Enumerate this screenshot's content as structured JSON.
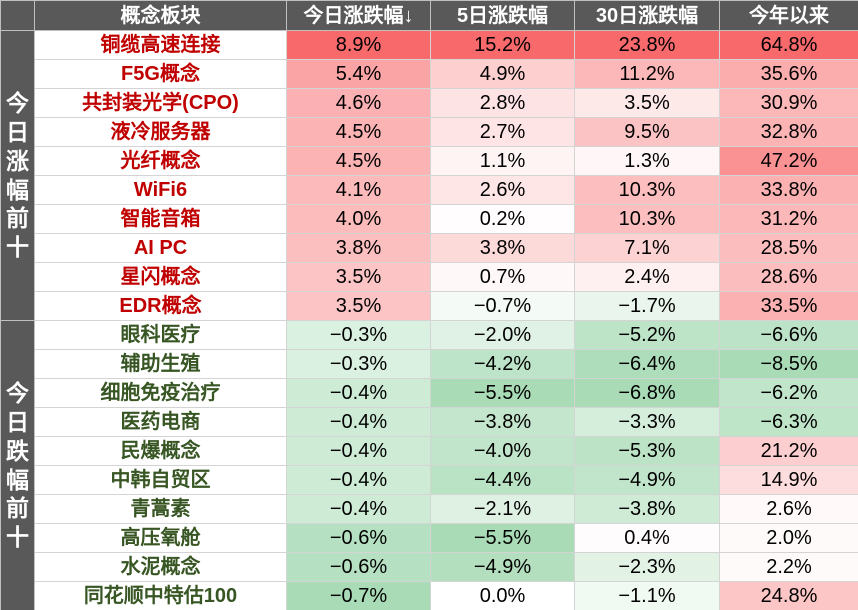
{
  "header": {
    "name": "概念板块",
    "today": "今日涨跌幅↓",
    "d5": "5日涨跌幅",
    "d30": "30日涨跌幅",
    "ytd": "今年以来"
  },
  "groups": [
    {
      "label": "今日涨幅前十",
      "direction": "up",
      "rows": [
        {
          "name": "铜缆高速连接",
          "today": "8.9%",
          "d5": "15.2%",
          "d30": "23.8%",
          "ytd": "64.8%"
        },
        {
          "name": "F5G概念",
          "today": "5.4%",
          "d5": "4.9%",
          "d30": "11.2%",
          "ytd": "35.6%"
        },
        {
          "name": "共封装光学(CPO)",
          "today": "4.6%",
          "d5": "2.8%",
          "d30": "3.5%",
          "ytd": "30.9%"
        },
        {
          "name": "液冷服务器",
          "today": "4.5%",
          "d5": "2.7%",
          "d30": "9.5%",
          "ytd": "32.8%"
        },
        {
          "name": "光纤概念",
          "today": "4.5%",
          "d5": "1.1%",
          "d30": "1.3%",
          "ytd": "47.2%"
        },
        {
          "name": "WiFi6",
          "today": "4.1%",
          "d5": "2.6%",
          "d30": "10.3%",
          "ytd": "33.8%"
        },
        {
          "name": "智能音箱",
          "today": "4.0%",
          "d5": "0.2%",
          "d30": "10.3%",
          "ytd": "31.2%"
        },
        {
          "name": "AI PC",
          "today": "3.8%",
          "d5": "3.8%",
          "d30": "7.1%",
          "ytd": "28.5%"
        },
        {
          "name": "星闪概念",
          "today": "3.5%",
          "d5": "0.7%",
          "d30": "2.4%",
          "ytd": "28.6%"
        },
        {
          "name": "EDR概念",
          "today": "3.5%",
          "d5": "−0.7%",
          "d30": "−1.7%",
          "ytd": "33.5%"
        }
      ]
    },
    {
      "label": "今日跌幅前十",
      "direction": "down",
      "rows": [
        {
          "name": "眼科医疗",
          "today": "−0.3%",
          "d5": "−2.0%",
          "d30": "−5.2%",
          "ytd": "−6.6%"
        },
        {
          "name": "辅助生殖",
          "today": "−0.3%",
          "d5": "−4.2%",
          "d30": "−6.4%",
          "ytd": "−8.5%"
        },
        {
          "name": "细胞免疫治疗",
          "today": "−0.4%",
          "d5": "−5.5%",
          "d30": "−6.8%",
          "ytd": "−6.2%"
        },
        {
          "name": "医药电商",
          "today": "−0.4%",
          "d5": "−3.8%",
          "d30": "−3.3%",
          "ytd": "−6.3%"
        },
        {
          "name": "民爆概念",
          "today": "−0.4%",
          "d5": "−4.0%",
          "d30": "−5.3%",
          "ytd": "21.2%"
        },
        {
          "name": "中韩自贸区",
          "today": "−0.4%",
          "d5": "−4.4%",
          "d30": "−4.9%",
          "ytd": "14.9%"
        },
        {
          "name": "青蒿素",
          "today": "−0.4%",
          "d5": "−2.1%",
          "d30": "−3.8%",
          "ytd": "2.6%"
        },
        {
          "name": "高压氧舱",
          "today": "−0.6%",
          "d5": "−5.5%",
          "d30": "0.4%",
          "ytd": "2.0%"
        },
        {
          "name": "水泥概念",
          "today": "−0.6%",
          "d5": "−4.9%",
          "d30": "−2.3%",
          "ytd": "2.2%"
        },
        {
          "name": "同花顺中特估100",
          "today": "−0.7%",
          "d5": "0.0%",
          "d30": "−1.1%",
          "ytd": "24.8%"
        }
      ]
    }
  ],
  "colors": {
    "header_bg": "#595959",
    "header_text": "#ffffff",
    "up_name": "#c00000",
    "down_name": "#375623",
    "heat_max_red": "#f8696b",
    "heat_max_green": "#63be7b"
  }
}
